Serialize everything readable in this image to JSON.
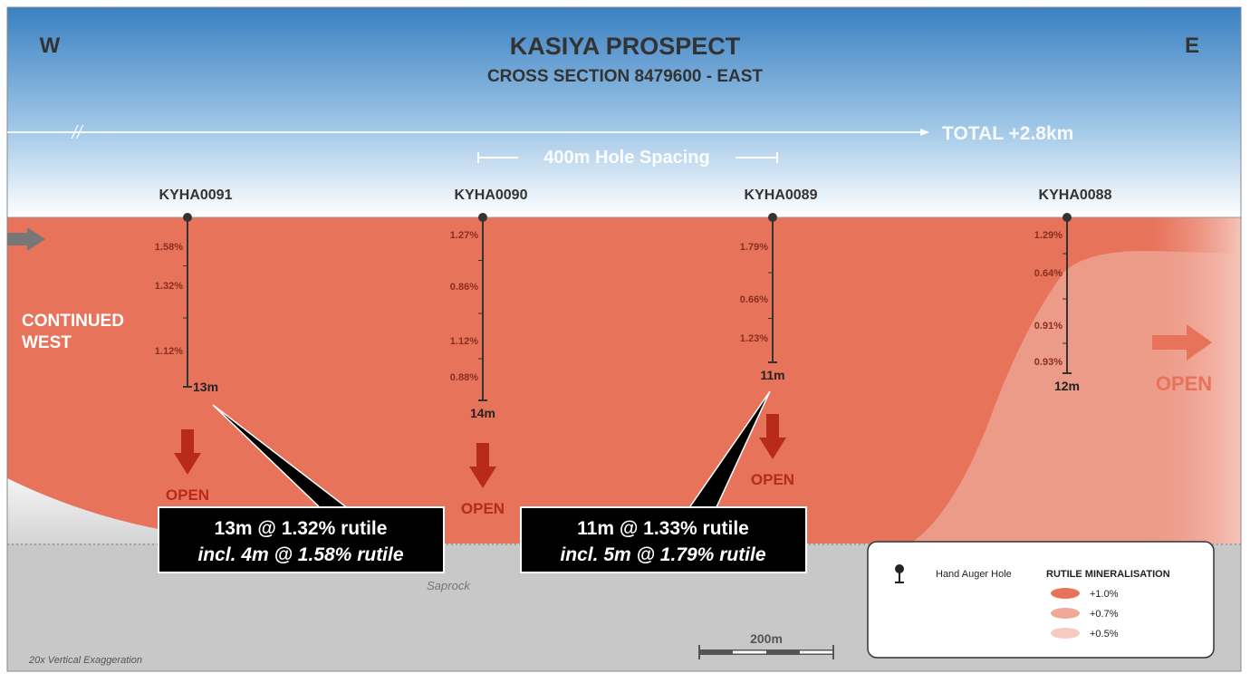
{
  "header": {
    "west": "W",
    "east": "E",
    "title": "KASIYA PROSPECT",
    "subtitle": "CROSS SECTION 8479600 - EAST"
  },
  "break_mark": "//",
  "total_label": "TOTAL +2.8km",
  "spacing_label": "400m Hole Spacing",
  "continued_west": [
    "CONTINUED",
    "WEST"
  ],
  "holes": [
    {
      "id": "KYHA0091",
      "grades": [
        "1.58%",
        "1.32%",
        "1.12%"
      ],
      "depth": "13m",
      "open": "OPEN"
    },
    {
      "id": "KYHA0090",
      "grades": [
        "1.27%",
        "0.86%",
        "1.12%",
        "0.88%"
      ],
      "depth": "14m",
      "open": "OPEN"
    },
    {
      "id": "KYHA0089",
      "grades": [
        "1.79%",
        "0.66%",
        "1.23%"
      ],
      "depth": "11m",
      "open": "OPEN"
    },
    {
      "id": "KYHA0088",
      "grades": [
        "1.29%",
        "0.64%",
        "0.91%",
        "0.93%"
      ],
      "depth": "12m"
    }
  ],
  "east_open": "OPEN",
  "callouts": [
    {
      "line1": "13m @ 1.32% rutile",
      "line2": "incl. 4m @ 1.58% rutile"
    },
    {
      "line1": "11m @ 1.33% rutile",
      "line2": "incl. 5m @ 1.79% rutile"
    }
  ],
  "saprock": "Saprock",
  "scale": "200m",
  "exaggeration": "20x Vertical Exaggeration",
  "legend": {
    "hole": "Hand Auger Hole",
    "title": "RUTILE MINERALISATION",
    "items": [
      "+1.0%",
      "+0.7%",
      "+0.5%"
    ]
  }
}
